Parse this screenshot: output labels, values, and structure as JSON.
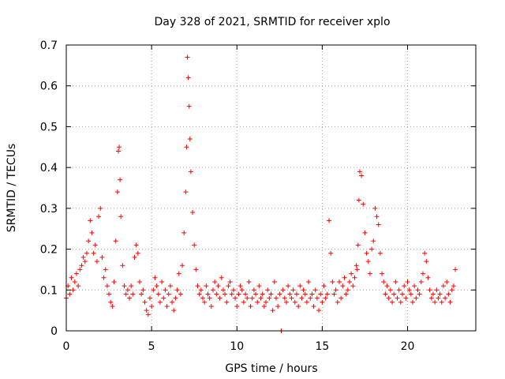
{
  "chart_data": {
    "type": "scatter",
    "title": "Day 328 of 2021, SRMTID for receiver xplo",
    "xlabel": "GPS time / hours",
    "ylabel": "SRMTID / TECUs",
    "xlim": [
      0,
      24
    ],
    "ylim": [
      0,
      0.7
    ],
    "x_ticks": [
      0,
      5,
      10,
      15,
      20
    ],
    "x_tick_labels": [
      "0",
      "5",
      "10",
      "15",
      "20"
    ],
    "y_ticks": [
      0,
      0.1,
      0.2,
      0.3,
      0.4,
      0.5,
      0.6,
      0.7
    ],
    "y_tick_labels": [
      "0",
      "0.1",
      "0.2",
      "0.3",
      "0.4",
      "0.5",
      "0.6",
      "0.7"
    ],
    "grid": true,
    "marker": "plus",
    "color": "#ff0000",
    "series": [
      {
        "name": "SRMTID",
        "x": [
          0.0,
          0.1,
          0.2,
          0.3,
          0.4,
          0.5,
          0.6,
          0.7,
          0.8,
          0.9,
          1.0,
          1.1,
          1.2,
          1.3,
          1.4,
          1.5,
          1.6,
          1.7,
          1.8,
          1.9,
          2.0,
          2.1,
          2.2,
          2.3,
          2.4,
          2.5,
          2.6,
          2.7,
          2.8,
          2.9,
          3.0,
          3.05,
          3.1,
          3.15,
          3.2,
          3.3,
          3.4,
          3.5,
          3.6,
          3.7,
          3.8,
          3.9,
          4.0,
          4.1,
          4.2,
          4.3,
          4.4,
          4.5,
          4.6,
          4.7,
          4.8,
          4.9,
          5.0,
          5.1,
          5.2,
          5.3,
          5.4,
          5.5,
          5.6,
          5.7,
          5.8,
          5.9,
          6.0,
          6.1,
          6.2,
          6.3,
          6.4,
          6.5,
          6.6,
          6.7,
          6.8,
          6.9,
          7.0,
          7.05,
          7.1,
          7.15,
          7.2,
          7.25,
          7.3,
          7.4,
          7.5,
          7.6,
          7.7,
          7.8,
          7.9,
          8.0,
          8.1,
          8.2,
          8.3,
          8.4,
          8.5,
          8.6,
          8.7,
          8.8,
          8.9,
          9.0,
          9.1,
          9.2,
          9.3,
          9.4,
          9.5,
          9.6,
          9.7,
          9.8,
          9.9,
          10.0,
          10.1,
          10.2,
          10.3,
          10.4,
          10.5,
          10.6,
          10.7,
          10.8,
          10.9,
          11.0,
          11.1,
          11.2,
          11.3,
          11.4,
          11.5,
          11.6,
          11.7,
          11.8,
          11.9,
          12.0,
          12.1,
          12.2,
          12.3,
          12.4,
          12.5,
          12.6,
          12.7,
          12.8,
          12.9,
          13.0,
          13.1,
          13.2,
          13.3,
          13.4,
          13.5,
          13.6,
          13.7,
          13.8,
          13.9,
          14.0,
          14.1,
          14.2,
          14.3,
          14.4,
          14.5,
          14.6,
          14.7,
          14.8,
          14.9,
          15.0,
          15.1,
          15.2,
          15.3,
          15.4,
          15.5,
          15.6,
          15.7,
          15.8,
          15.9,
          16.0,
          16.1,
          16.2,
          16.3,
          16.4,
          16.5,
          16.6,
          16.7,
          16.8,
          16.9,
          17.0,
          17.05,
          17.1,
          17.15,
          17.2,
          17.3,
          17.4,
          17.5,
          17.6,
          17.7,
          17.8,
          17.9,
          18.0,
          18.1,
          18.2,
          18.3,
          18.4,
          18.5,
          18.6,
          18.7,
          18.8,
          18.9,
          19.0,
          19.1,
          19.2,
          19.3,
          19.4,
          19.5,
          19.6,
          19.7,
          19.8,
          19.9,
          20.0,
          20.1,
          20.2,
          20.3,
          20.4,
          20.5,
          20.6,
          20.7,
          20.8,
          20.9,
          21.0,
          21.1,
          21.2,
          21.3,
          21.4,
          21.5,
          21.6,
          21.7,
          21.8,
          21.9,
          22.0,
          22.1,
          22.2,
          22.3,
          22.4,
          22.5,
          22.6,
          22.7,
          22.8
        ],
        "y": [
          0.08,
          0.11,
          0.09,
          0.13,
          0.1,
          0.12,
          0.14,
          0.11,
          0.15,
          0.16,
          0.18,
          0.17,
          0.19,
          0.22,
          0.27,
          0.24,
          0.19,
          0.21,
          0.17,
          0.28,
          0.3,
          0.18,
          0.13,
          0.15,
          0.11,
          0.09,
          0.07,
          0.06,
          0.12,
          0.22,
          0.34,
          0.44,
          0.45,
          0.37,
          0.28,
          0.16,
          0.11,
          0.09,
          0.1,
          0.08,
          0.11,
          0.09,
          0.18,
          0.21,
          0.19,
          0.12,
          0.09,
          0.1,
          0.07,
          0.05,
          0.04,
          0.08,
          0.06,
          0.1,
          0.13,
          0.11,
          0.09,
          0.07,
          0.12,
          0.08,
          0.1,
          0.06,
          0.09,
          0.11,
          0.07,
          0.05,
          0.08,
          0.1,
          0.14,
          0.09,
          0.16,
          0.24,
          0.34,
          0.45,
          0.67,
          0.62,
          0.55,
          0.47,
          0.39,
          0.29,
          0.21,
          0.15,
          0.11,
          0.09,
          0.1,
          0.08,
          0.07,
          0.11,
          0.09,
          0.08,
          0.06,
          0.1,
          0.12,
          0.09,
          0.11,
          0.08,
          0.13,
          0.1,
          0.09,
          0.07,
          0.11,
          0.12,
          0.09,
          0.1,
          0.08,
          0.06,
          0.09,
          0.11,
          0.1,
          0.07,
          0.09,
          0.08,
          0.12,
          0.06,
          0.08,
          0.1,
          0.09,
          0.07,
          0.11,
          0.08,
          0.09,
          0.06,
          0.07,
          0.1,
          0.08,
          0.09,
          0.05,
          0.12,
          0.08,
          0.06,
          0.09,
          0.0,
          0.1,
          0.08,
          0.07,
          0.11,
          0.09,
          0.08,
          0.1,
          0.07,
          0.09,
          0.06,
          0.11,
          0.08,
          0.1,
          0.09,
          0.07,
          0.12,
          0.08,
          0.09,
          0.06,
          0.1,
          0.08,
          0.05,
          0.09,
          0.07,
          0.11,
          0.08,
          0.09,
          0.27,
          0.19,
          0.12,
          0.09,
          0.1,
          0.07,
          0.12,
          0.08,
          0.11,
          0.13,
          0.09,
          0.1,
          0.12,
          0.14,
          0.11,
          0.13,
          0.16,
          0.15,
          0.21,
          0.32,
          0.39,
          0.38,
          0.31,
          0.24,
          0.19,
          0.17,
          0.14,
          0.2,
          0.22,
          0.3,
          0.28,
          0.26,
          0.19,
          0.14,
          0.12,
          0.09,
          0.11,
          0.08,
          0.1,
          0.07,
          0.09,
          0.12,
          0.08,
          0.1,
          0.07,
          0.09,
          0.11,
          0.08,
          0.12,
          0.1,
          0.09,
          0.07,
          0.11,
          0.08,
          0.1,
          0.09,
          0.12,
          0.14,
          0.19,
          0.17,
          0.13,
          0.1,
          0.08,
          0.09,
          0.07,
          0.1,
          0.08,
          0.09,
          0.07,
          0.11,
          0.08,
          0.12,
          0.09,
          0.07,
          0.1,
          0.11,
          0.15
        ]
      }
    ]
  }
}
